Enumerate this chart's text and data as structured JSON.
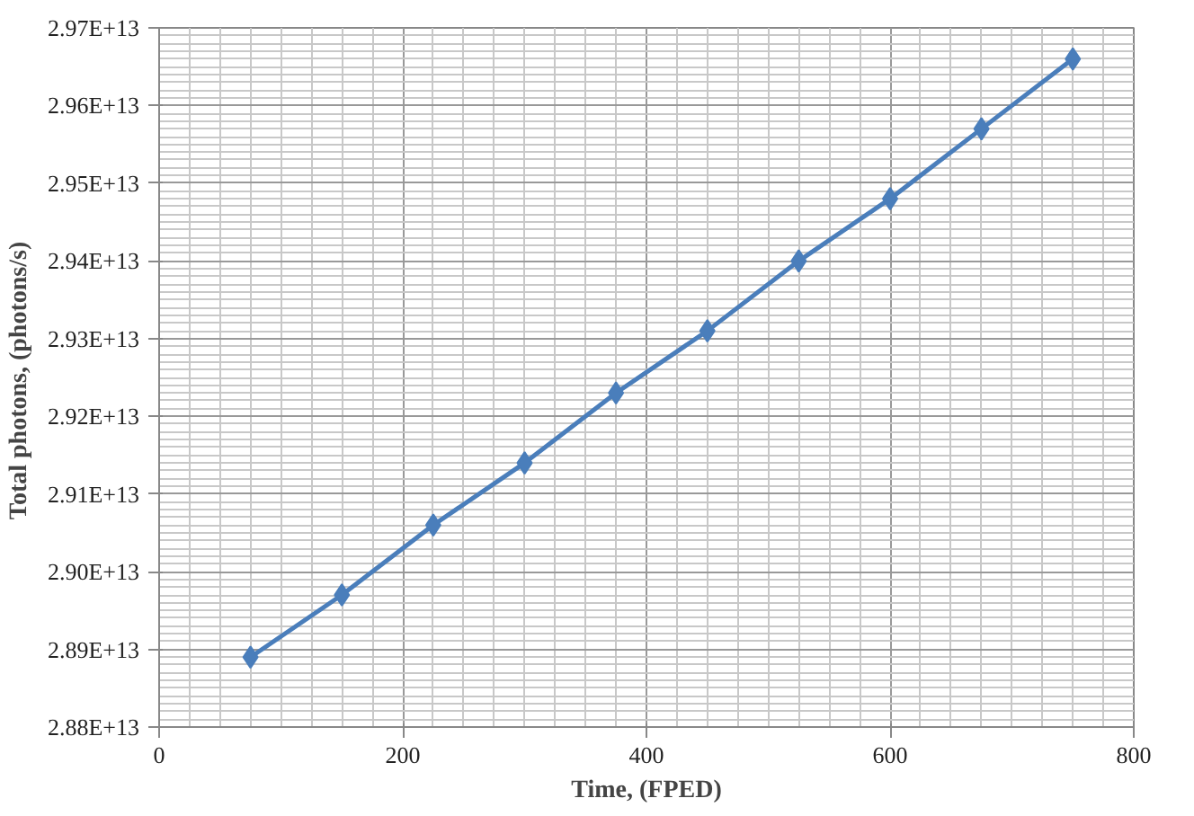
{
  "chart_data": {
    "type": "line",
    "xlabel": "Time, (FPED)",
    "ylabel": "Total  photons, (photons/s)",
    "x": [
      75,
      150,
      225,
      300,
      375,
      450,
      525,
      600,
      675,
      750
    ],
    "series": [
      {
        "color": "#4a7ebb",
        "values": [
          28890000000000.0,
          28970000000000.0,
          29060000000000.0,
          29140000000000.0,
          29230000000000.0,
          29310000000000.0,
          29400000000000.0,
          29480000000000.0,
          29570000000000.0,
          29660000000000.0
        ]
      }
    ],
    "xlim": [
      0,
      800
    ],
    "xticks": [
      0,
      200,
      400,
      600,
      800
    ],
    "ylim": [
      28800000000000.0,
      29700000000000.0
    ],
    "yticks": [
      {
        "value": 28800000000000.0,
        "label": "2.88E+13"
      },
      {
        "value": 28900000000000.0,
        "label": "2.89E+13"
      },
      {
        "value": 29000000000000.0,
        "label": "2.90E+13"
      },
      {
        "value": 29100000000000.0,
        "label": "2.91E+13"
      },
      {
        "value": 29200000000000.0,
        "label": "2.92E+13"
      },
      {
        "value": 29300000000000.0,
        "label": "2.93E+13"
      },
      {
        "value": 29400000000000.0,
        "label": "2.94E+13"
      },
      {
        "value": 29500000000000.0,
        "label": "2.95E+13"
      },
      {
        "value": 29600000000000.0,
        "label": "2.96E+13"
      },
      {
        "value": 29700000000000.0,
        "label": "2.97E+13"
      }
    ],
    "grid": true,
    "marker": "diamond",
    "line_style": "solid"
  }
}
